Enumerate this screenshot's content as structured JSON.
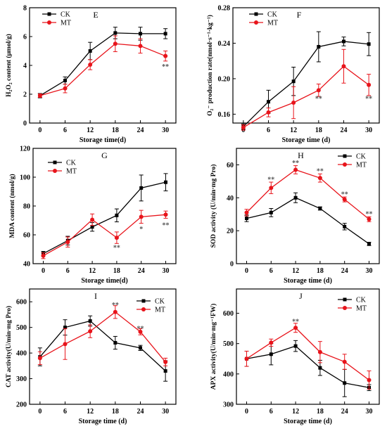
{
  "colors": {
    "CK": "#000000",
    "MT": "#e8141b",
    "sig": "#555555"
  },
  "chart_data": [
    {
      "id": "E",
      "type": "line",
      "title": "E",
      "xlabel": "Storage time(d)",
      "ylabel": "H₂O₂ content (μmol/g)",
      "x": [
        0,
        6,
        12,
        18,
        24,
        30
      ],
      "xticks": [
        "0",
        "6",
        "12",
        "18",
        "24",
        "30"
      ],
      "ylim": [
        0,
        8
      ],
      "yticks": [
        "0",
        "2",
        "4",
        "6",
        "8"
      ],
      "grid": false,
      "legend_position": "top-left",
      "series": [
        {
          "name": "CK",
          "values": [
            1.9,
            2.95,
            5.0,
            6.25,
            6.2,
            6.2
          ],
          "errors": [
            0.15,
            0.25,
            0.6,
            0.4,
            0.45,
            0.35
          ]
        },
        {
          "name": "MT",
          "values": [
            1.9,
            2.4,
            4.05,
            5.5,
            5.35,
            4.65
          ],
          "errors": [
            0.12,
            0.3,
            0.35,
            0.55,
            0.5,
            0.35
          ]
        }
      ],
      "annotations": [
        {
          "x": 30,
          "y": 3.95,
          "text": "**"
        }
      ]
    },
    {
      "id": "F",
      "type": "line",
      "title": "F",
      "xlabel": "Storage time (d)",
      "ylabel": "O₂⁻ production rate(nmol·s⁻¹·kg⁻¹)",
      "x": [
        0,
        6,
        12,
        18,
        24,
        30
      ],
      "xticks": [
        "0",
        "6",
        "12",
        "18",
        "24",
        "30"
      ],
      "ylim": [
        0.15,
        0.28
      ],
      "yticks": [
        "0.16",
        "0.20",
        "0.24",
        "0.28"
      ],
      "grid": false,
      "legend_position": "top-left",
      "series": [
        {
          "name": "CK",
          "values": [
            0.146,
            0.174,
            0.197,
            0.236,
            0.242,
            0.239
          ],
          "errors": [
            0.003,
            0.013,
            0.016,
            0.017,
            0.005,
            0.013
          ]
        },
        {
          "name": "MT",
          "values": [
            0.145,
            0.162,
            0.173,
            0.187,
            0.214,
            0.193
          ],
          "errors": [
            0.003,
            0.005,
            0.018,
            0.007,
            0.019,
            0.012
          ]
        }
      ],
      "annotations": [
        {
          "x": 18,
          "y": 0.178,
          "text": "**"
        },
        {
          "x": 30,
          "y": 0.178,
          "text": "**"
        }
      ]
    },
    {
      "id": "G",
      "type": "line",
      "title": "G",
      "xlabel": "Storage time(d)",
      "ylabel": "MDA content (nmol/g)",
      "x": [
        0,
        6,
        12,
        18,
        24,
        30
      ],
      "xticks": [
        "0",
        "6",
        "12",
        "18",
        "24",
        "30"
      ],
      "ylim": [
        40,
        120
      ],
      "yticks": [
        "40",
        "60",
        "80",
        "100",
        "120"
      ],
      "grid": false,
      "legend_position": "top-left",
      "series": [
        {
          "name": "CK",
          "values": [
            47.0,
            56.0,
            65.5,
            73.5,
            92.5,
            96.5
          ],
          "errors": [
            1.5,
            3.0,
            3.0,
            4.5,
            9.0,
            6.0
          ]
        },
        {
          "name": "MT",
          "values": [
            45.5,
            55.0,
            70.5,
            58.0,
            72.5,
            74.0
          ],
          "errors": [
            2.0,
            3.5,
            4.0,
            4.0,
            4.5,
            2.5
          ]
        }
      ],
      "annotations": [
        {
          "x": 18,
          "y": 51.5,
          "text": "**"
        },
        {
          "x": 24,
          "y": 64.5,
          "text": "*"
        },
        {
          "x": 30,
          "y": 67.0,
          "text": "**"
        }
      ]
    },
    {
      "id": "H",
      "type": "line",
      "title": "H",
      "xlabel": "Storage time (d)",
      "ylabel": "SOD activity  (U/min·mg Pro)",
      "x": [
        0,
        6,
        12,
        18,
        24,
        30
      ],
      "xticks": [
        "0",
        "6",
        "12",
        "18",
        "24",
        "30"
      ],
      "ylim": [
        0,
        70
      ],
      "yticks": [
        "0",
        "20",
        "40",
        "60"
      ],
      "grid": false,
      "legend_position": "top-right",
      "series": [
        {
          "name": "CK",
          "values": [
            27.5,
            31.0,
            40.0,
            33.5,
            22.5,
            12.0
          ],
          "errors": [
            2.0,
            2.5,
            3.0,
            1.0,
            2.0,
            1.0
          ]
        },
        {
          "name": "MT",
          "values": [
            31.0,
            46.0,
            57.0,
            52.0,
            39.0,
            27.0
          ],
          "errors": [
            2.0,
            3.5,
            2.5,
            2.5,
            1.5,
            1.5
          ]
        }
      ],
      "annotations": [
        {
          "x": 6,
          "y": 51.5,
          "text": "**"
        },
        {
          "x": 12,
          "y": 61.5,
          "text": "**"
        },
        {
          "x": 18,
          "y": 56.5,
          "text": "**"
        },
        {
          "x": 24,
          "y": 42.5,
          "text": "**"
        },
        {
          "x": 30,
          "y": 30.5,
          "text": "**"
        }
      ]
    },
    {
      "id": "I",
      "type": "line",
      "title": "I",
      "xlabel": "Storage time (d)",
      "ylabel": "CAT activity(U/min·mg Pro)",
      "x": [
        0,
        6,
        12,
        18,
        24,
        30
      ],
      "xticks": [
        "0",
        "6",
        "12",
        "18",
        "24",
        "30"
      ],
      "ylim": [
        200,
        650
      ],
      "yticks": [
        "200",
        "300",
        "400",
        "500",
        "600"
      ],
      "grid": false,
      "legend_position": "top-right",
      "series": [
        {
          "name": "CK",
          "values": [
            385,
            500,
            525,
            440,
            420,
            330
          ],
          "errors": [
            35,
            30,
            20,
            25,
            10,
            40
          ]
        },
        {
          "name": "MT",
          "values": [
            380,
            435,
            485,
            560,
            483,
            365
          ],
          "errors": [
            25,
            60,
            25,
            25,
            12,
            15
          ]
        }
      ],
      "annotations": [
        {
          "x": 18,
          "y": 590,
          "text": "**"
        },
        {
          "x": 24,
          "y": 498,
          "text": "**"
        }
      ]
    },
    {
      "id": "J",
      "type": "line",
      "title": "J",
      "xlabel": "Storage time (d)",
      "ylabel": "APX activity(U/min·mg⁻¹FW)",
      "x": [
        0,
        6,
        12,
        18,
        24,
        30
      ],
      "xticks": [
        "0",
        "6",
        "12",
        "18",
        "24",
        "30"
      ],
      "ylim": [
        300,
        680
      ],
      "yticks": [
        "300",
        "400",
        "500",
        "600"
      ],
      "grid": false,
      "legend_position": "top-right",
      "series": [
        {
          "name": "CK",
          "values": [
            450,
            465,
            492,
            420,
            370,
            355
          ],
          "errors": [
            25,
            35,
            18,
            25,
            45,
            10
          ]
        },
        {
          "name": "MT",
          "values": [
            450,
            503,
            552,
            472,
            440,
            380
          ],
          "errors": [
            25,
            12,
            15,
            35,
            25,
            30
          ]
        }
      ],
      "annotations": [
        {
          "x": 12,
          "y": 574,
          "text": "**"
        }
      ]
    }
  ]
}
